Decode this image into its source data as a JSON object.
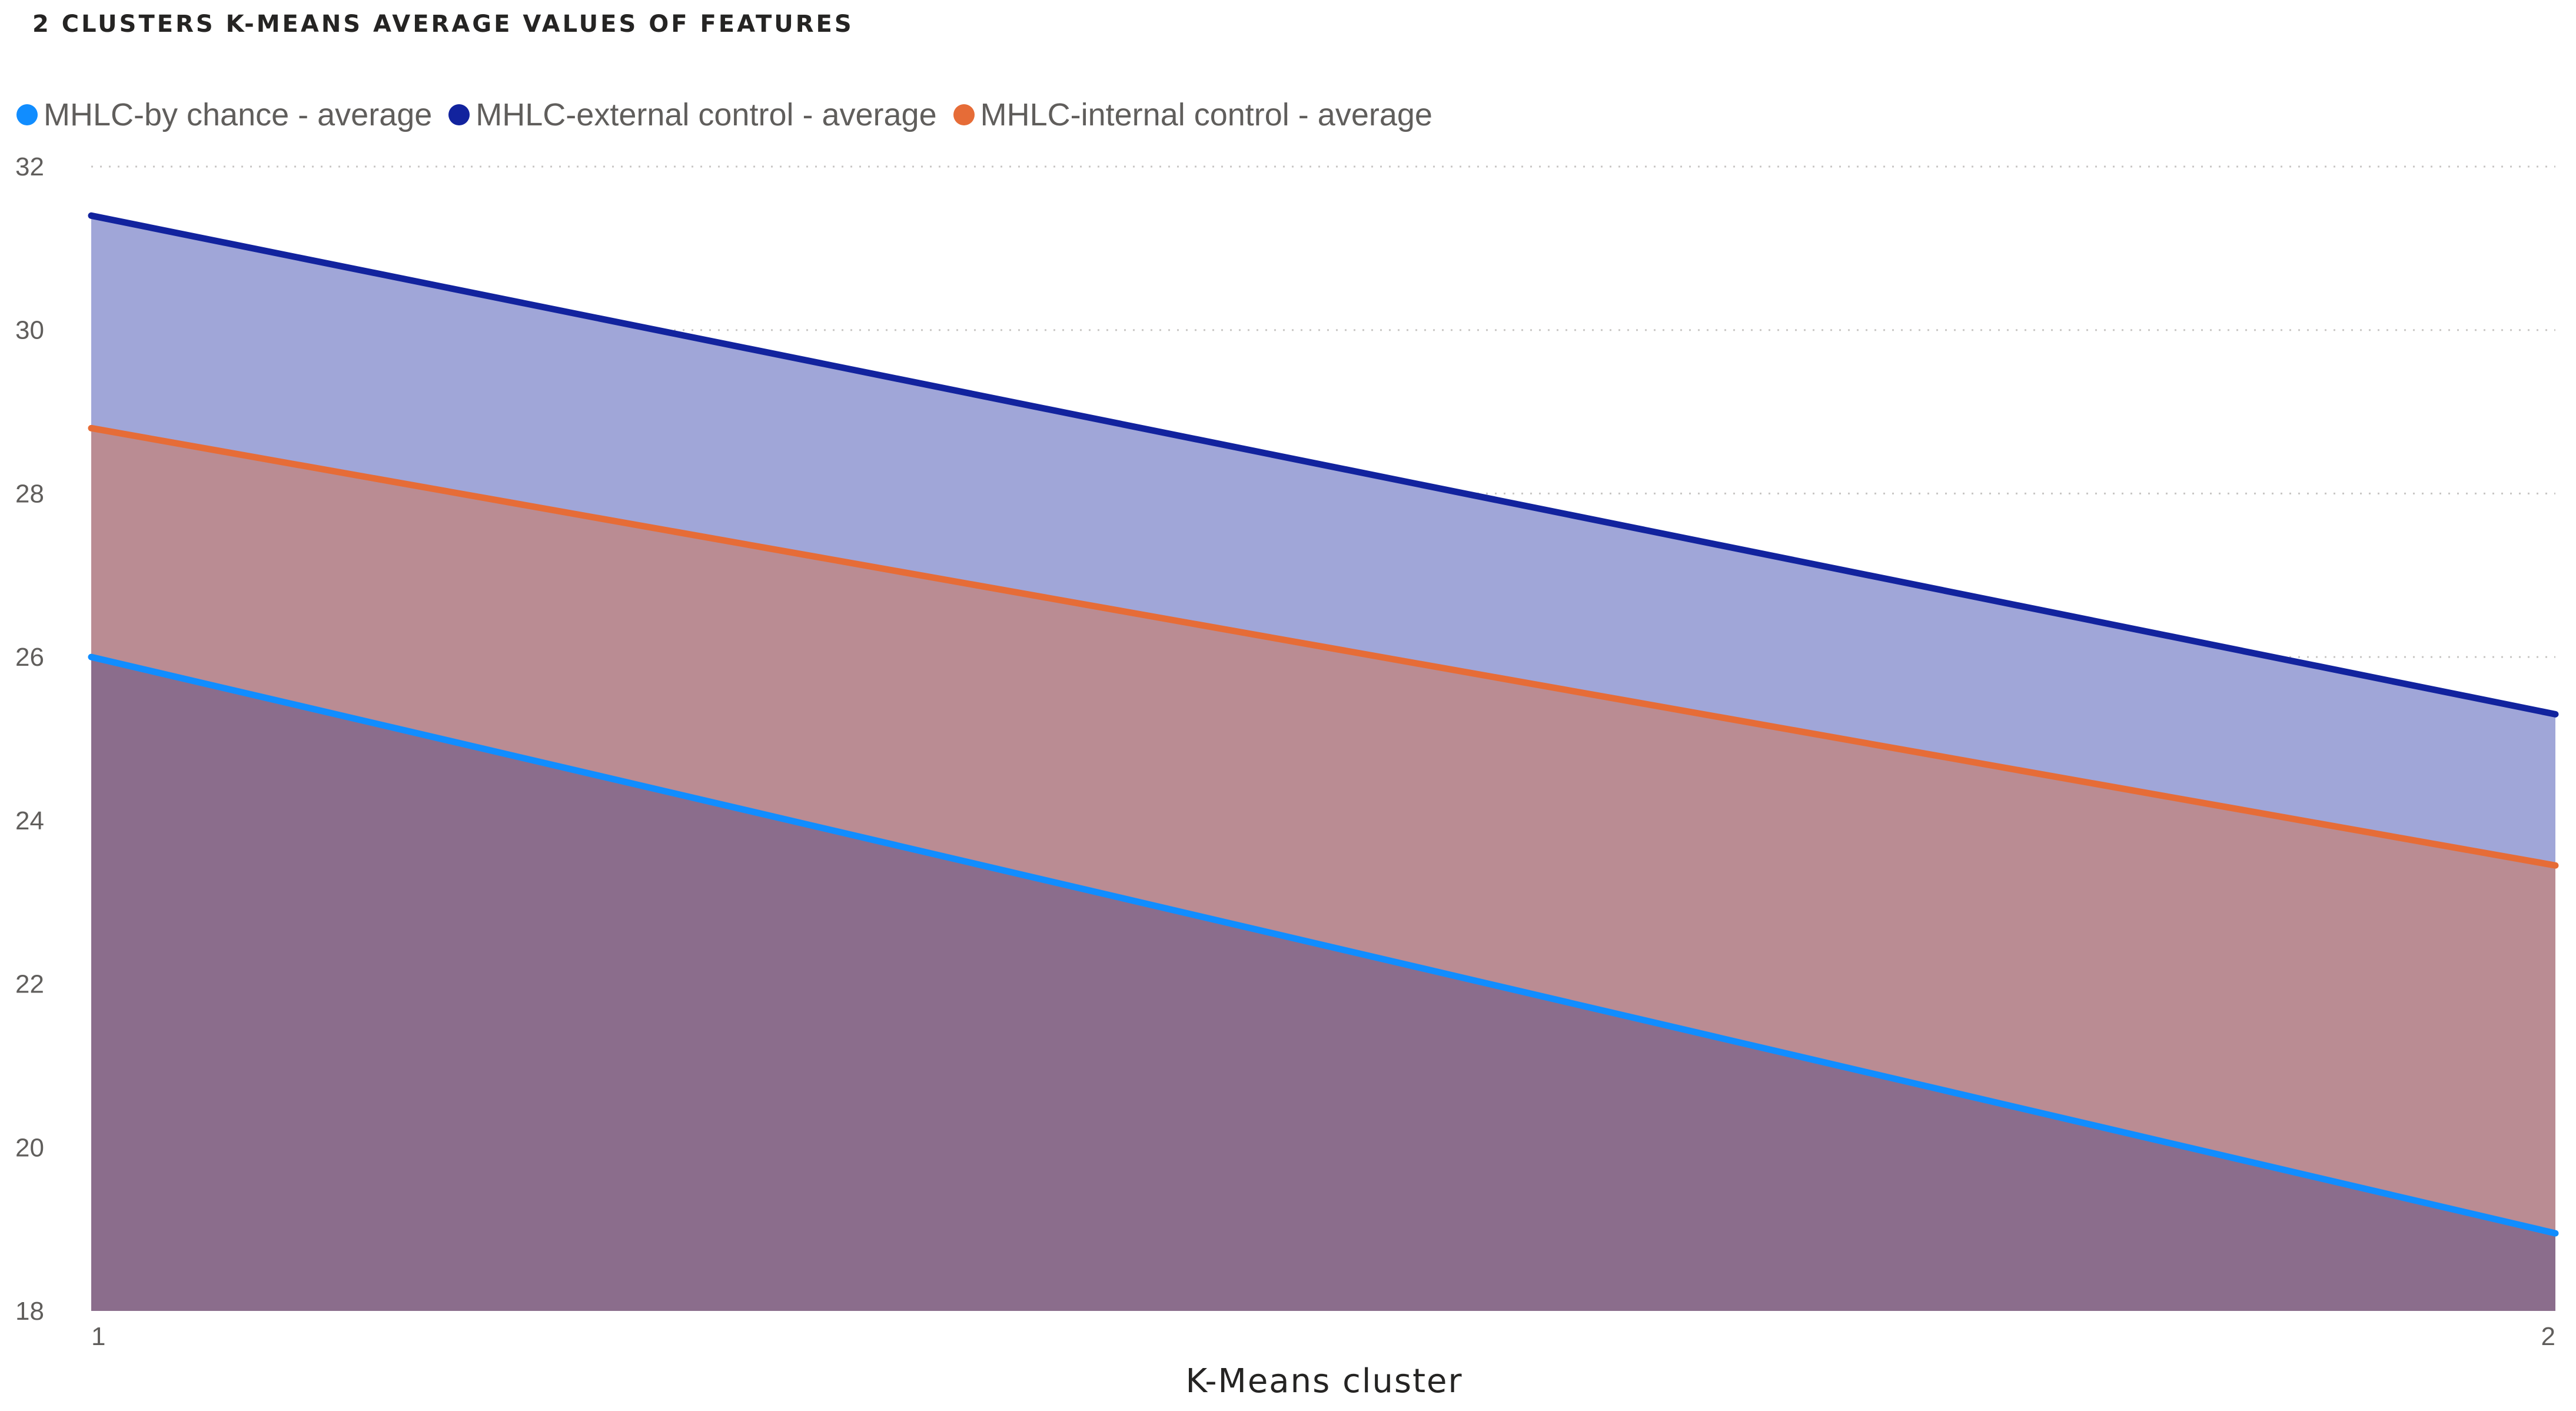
{
  "title": "2 CLUSTERS K-MEANS AVERAGE VALUES OF FEATURES",
  "colors": {
    "by_chance": "#118DFF",
    "external_control": "#12239E",
    "internal_control": "#E66C37",
    "gridline": "#c8c6c4",
    "tick_text": "#605e5c"
  },
  "chart_data": {
    "type": "area",
    "xlabel": "K-Means cluster",
    "ylabel": "",
    "categories": [
      "1",
      "2"
    ],
    "ylim": [
      18,
      32
    ],
    "y_ticks": [
      "32",
      "30",
      "28",
      "26",
      "24",
      "22",
      "20",
      "18"
    ],
    "grid": true,
    "legend_position": "top-left",
    "series": [
      {
        "name": "MHLC-by chance - average",
        "values": [
          26.0,
          18.95
        ],
        "color": "#118DFF",
        "fill": "#8B6D8C"
      },
      {
        "name": "MHLC-external control - average",
        "values": [
          31.4,
          25.3
        ],
        "color": "#12239E",
        "fill": "#A0A6D8"
      },
      {
        "name": "MHLC-internal control - average",
        "values": [
          28.8,
          23.45
        ],
        "color": "#E66C37",
        "fill": "#BA8C93"
      }
    ]
  }
}
